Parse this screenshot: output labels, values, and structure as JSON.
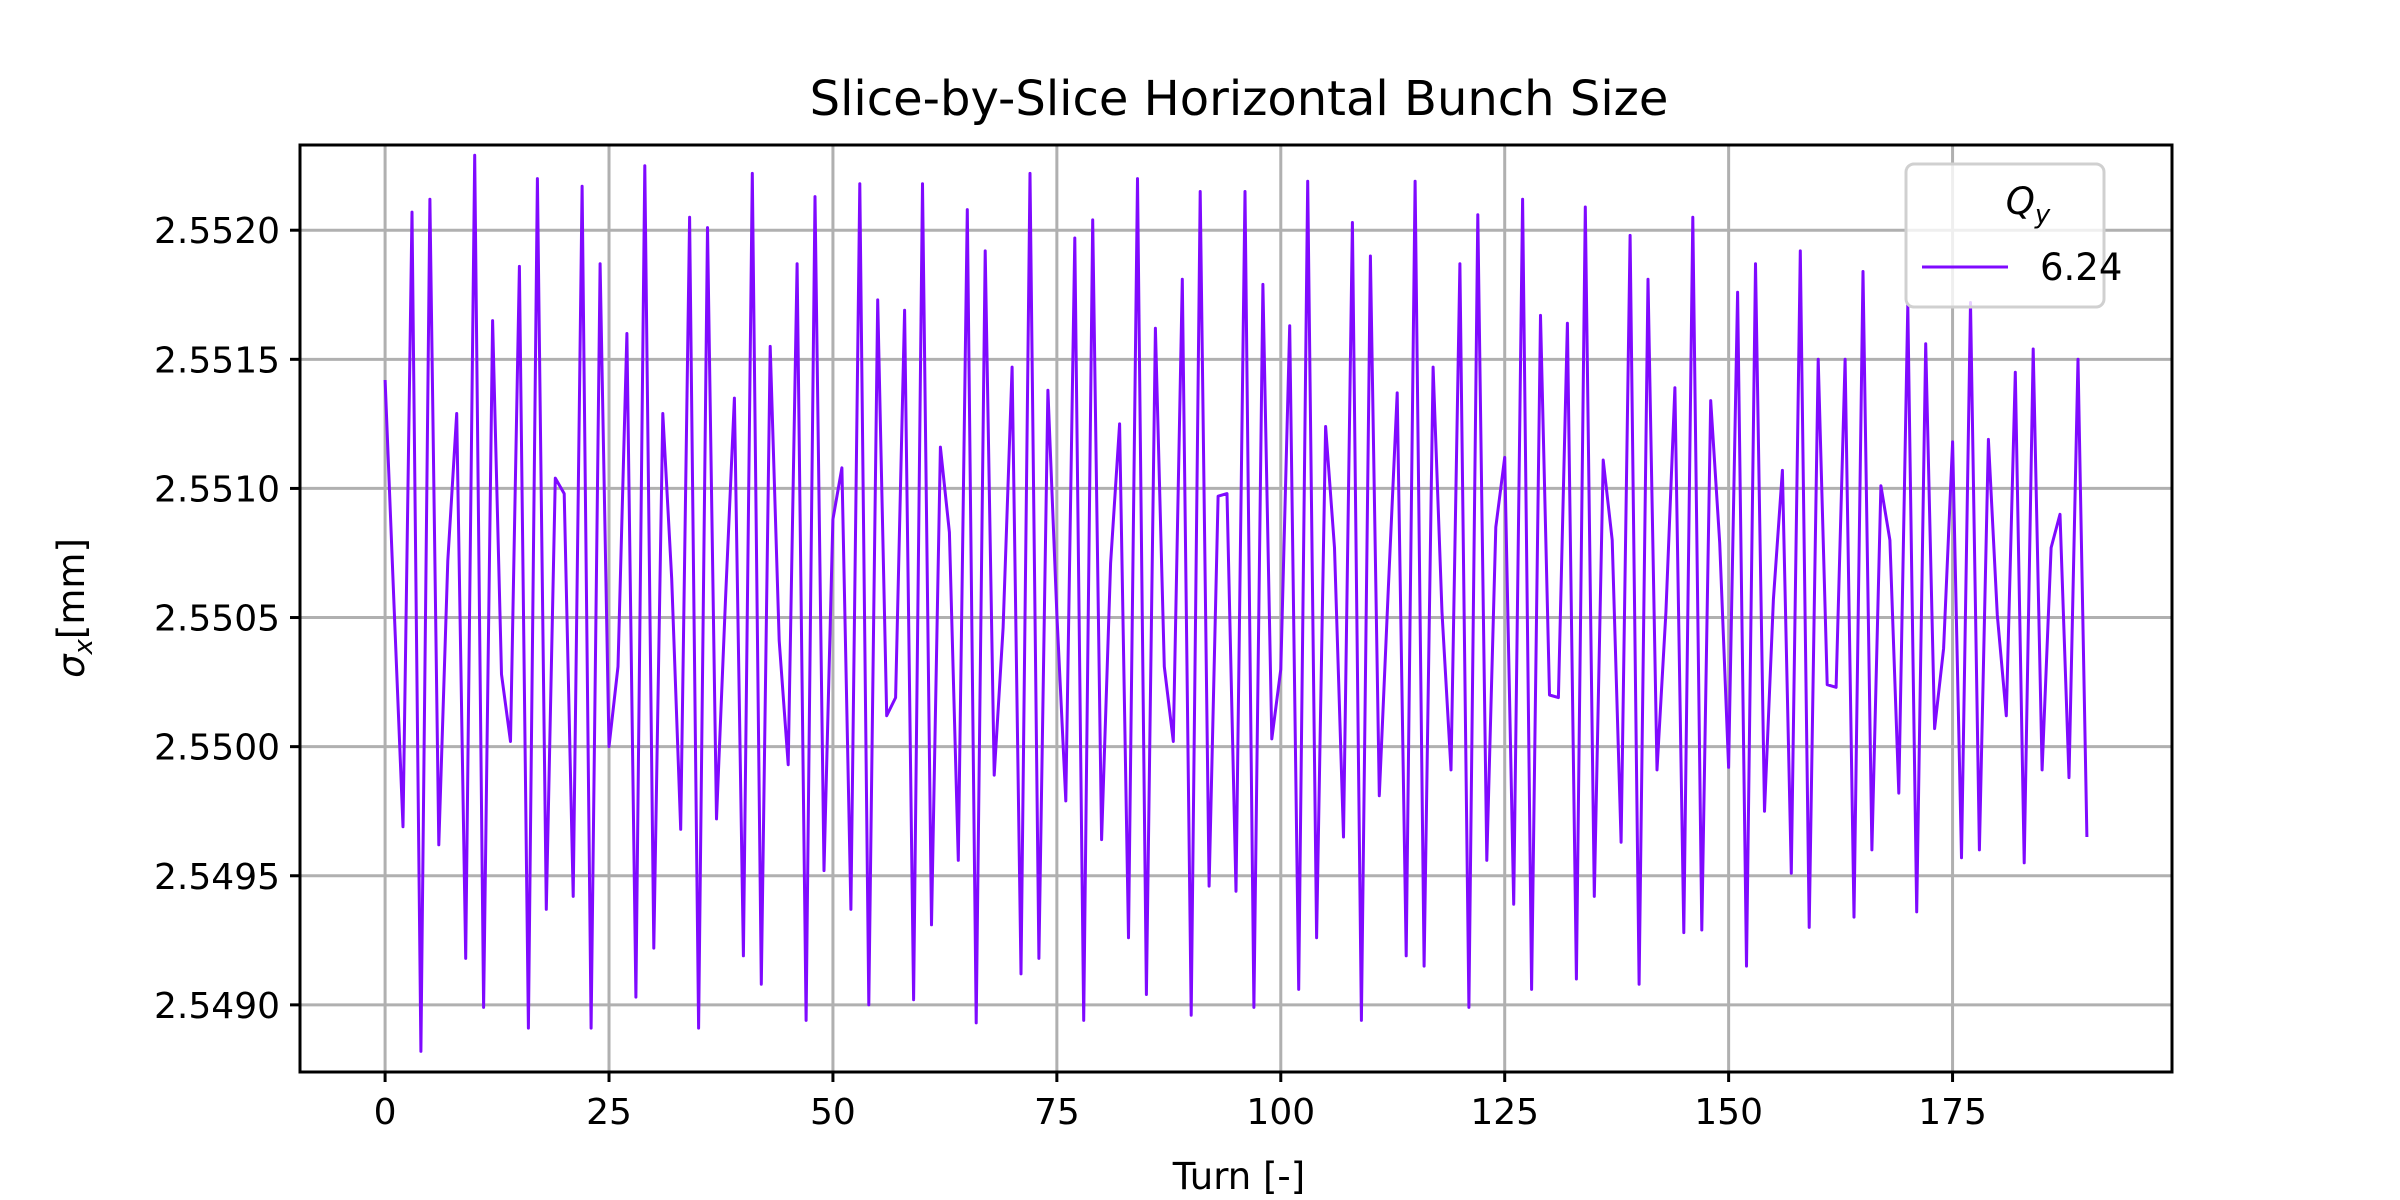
{
  "chart_data": {
    "type": "line",
    "title": "Slice-by-Slice Horizontal Bunch Size",
    "xlabel": "Turn [-]",
    "ylabel_symbol": "σ",
    "ylabel_subscript": "x",
    "ylabel_unit": "[mm]",
    "xlim": [
      -9.5,
      199.5
    ],
    "ylim": [
      2.54874,
      2.55233
    ],
    "x_ticks": [
      0,
      25,
      50,
      75,
      100,
      125,
      150,
      175
    ],
    "y_ticks": [
      2.549,
      2.5495,
      2.55,
      2.5505,
      2.551,
      2.5515,
      2.552
    ],
    "x_tick_labels": [
      "0",
      "25",
      "50",
      "75",
      "100",
      "125",
      "150",
      "175"
    ],
    "y_tick_labels": [
      "2.5490",
      "2.5495",
      "2.5500",
      "2.5505",
      "2.5510",
      "2.5515",
      "2.5520"
    ],
    "grid": true,
    "legend": {
      "placement": "top-right",
      "title_symbol": "Q",
      "title_subscript": "y"
    },
    "series": [
      {
        "name": "6.24",
        "color": "#7f0aff",
        "x": [
          0,
          1,
          2,
          3,
          4,
          5,
          6,
          7,
          8,
          9,
          10,
          11,
          12,
          13,
          14,
          15,
          16,
          17,
          18,
          19,
          20,
          21,
          22,
          23,
          24,
          25,
          26,
          27,
          28,
          29,
          30,
          31,
          32,
          33,
          34,
          35,
          36,
          37,
          38,
          39,
          40,
          41,
          42,
          43,
          44,
          45,
          46,
          47,
          48,
          49,
          50,
          51,
          52,
          53,
          54,
          55,
          56,
          57,
          58,
          59,
          60,
          61,
          62,
          63,
          64,
          65,
          66,
          67,
          68,
          69,
          70,
          71,
          72,
          73,
          74,
          75,
          76,
          77,
          78,
          79,
          80,
          81,
          82,
          83,
          84,
          85,
          86,
          87,
          88,
          89,
          90,
          91,
          92,
          93,
          94,
          95,
          96,
          97,
          98,
          99,
          100,
          101,
          102,
          103,
          104,
          105,
          106,
          107,
          108,
          109,
          110,
          111,
          112,
          113,
          114,
          115,
          116,
          117,
          118,
          119,
          120,
          121,
          122,
          123,
          124,
          125,
          126,
          127,
          128,
          129,
          130,
          131,
          132,
          133,
          134,
          135,
          136,
          137,
          138,
          139,
          140,
          141,
          142,
          143,
          144,
          145,
          146,
          147,
          148,
          149,
          150,
          151,
          152,
          153,
          154,
          155,
          156,
          157,
          158,
          159,
          160,
          161,
          162,
          163,
          164,
          165,
          166,
          167,
          168,
          169,
          170,
          171,
          172,
          173,
          174,
          175,
          176,
          177,
          178,
          179,
          180,
          181,
          182,
          183,
          184,
          185,
          186,
          187,
          188,
          189,
          190
        ],
        "y": [
          2.55142,
          2.55055,
          2.54969,
          2.55207,
          2.54882,
          2.55212,
          2.54962,
          2.55072,
          2.55129,
          2.54918,
          2.55229,
          2.54899,
          2.55165,
          2.55028,
          2.55002,
          2.55186,
          2.54891,
          2.5522,
          2.54937,
          2.55104,
          2.55098,
          2.54942,
          2.55217,
          2.54891,
          2.55187,
          2.55,
          2.55031,
          2.5516,
          2.54903,
          2.55225,
          2.54922,
          2.55129,
          2.55065,
          2.54968,
          2.55205,
          2.54891,
          2.55201,
          2.54972,
          2.55057,
          2.55135,
          2.54919,
          2.55222,
          2.54908,
          2.55155,
          2.55041,
          2.54993,
          2.55187,
          2.54894,
          2.55213,
          2.54952,
          2.55088,
          2.55108,
          2.54937,
          2.55218,
          2.549,
          2.55173,
          2.55012,
          2.55019,
          2.55169,
          2.54902,
          2.55218,
          2.54931,
          2.55116,
          2.55083,
          2.54956,
          2.55208,
          2.54893,
          2.55192,
          2.54989,
          2.55046,
          2.55147,
          2.54912,
          2.55222,
          2.54918,
          2.55138,
          2.55051,
          2.54979,
          2.55197,
          2.54894,
          2.55204,
          2.54964,
          2.55071,
          2.55125,
          2.54926,
          2.5522,
          2.54904,
          2.55162,
          2.55031,
          2.55002,
          2.55181,
          2.54896,
          2.55215,
          2.54946,
          2.55097,
          2.55098,
          2.54944,
          2.55215,
          2.54899,
          2.55179,
          2.55003,
          2.5503,
          2.55163,
          2.54906,
          2.55219,
          2.54926,
          2.55124,
          2.55077,
          2.54965,
          2.55203,
          2.54894,
          2.5519,
          2.54981,
          2.55061,
          2.55137,
          2.54919,
          2.55219,
          2.54915,
          2.55147,
          2.55052,
          2.54991,
          2.55187,
          2.54899,
          2.55206,
          2.54956,
          2.55085,
          2.55112,
          2.54939,
          2.55212,
          2.54906,
          2.55167,
          2.5502,
          2.55019,
          2.55164,
          2.5491,
          2.55209,
          2.54942,
          2.55111,
          2.5508,
          2.54963,
          2.55198,
          2.54908,
          2.55181,
          2.54991,
          2.55052,
          2.55139,
          2.54928,
          2.55205,
          2.54929,
          2.55134,
          2.55079,
          2.54992,
          2.55176,
          2.54915,
          2.55187,
          2.54975,
          2.55057,
          2.55107,
          2.54951,
          2.55192,
          2.5493,
          2.5515,
          2.55024,
          2.55023,
          2.5515,
          2.54934,
          2.55184,
          2.5496,
          2.55101,
          2.5508,
          2.54982,
          2.55171,
          2.54936,
          2.55156,
          2.55007,
          2.55038,
          2.55118,
          2.54957,
          2.55172,
          2.5496,
          2.55119,
          2.55051,
          2.55012,
          2.55145,
          2.54955,
          2.55154,
          2.54991,
          2.55077,
          2.5509,
          2.54988,
          2.5515,
          2.54965
        ]
      }
    ]
  }
}
